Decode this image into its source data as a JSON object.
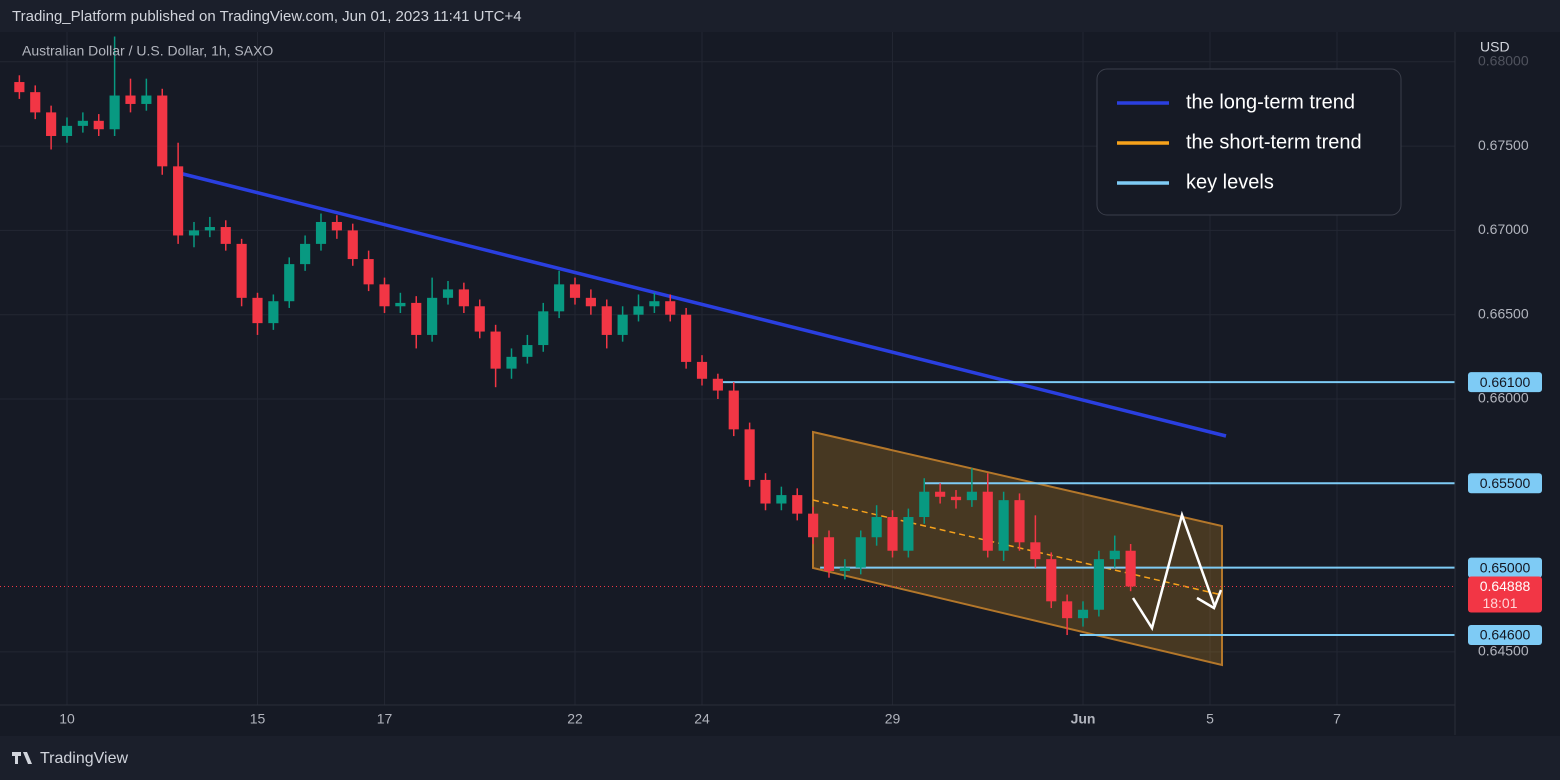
{
  "chart_data": {
    "type": "candlestick",
    "title": "Trading_Platform published on TradingView.com, Jun 01, 2023 11:41 UTC+4",
    "subtitle": "Australian Dollar / U.S. Dollar, 1h, SAXO",
    "y_label": "USD",
    "x": [
      -0.75,
      -0.5,
      -0.25,
      0,
      0.25,
      0.5,
      0.75,
      1,
      1.25,
      1.5,
      1.75,
      2,
      2.25,
      2.5,
      2.75,
      3,
      3.25,
      3.5,
      3.75,
      4,
      4.25,
      4.5,
      4.75,
      5,
      5.25,
      5.5,
      5.75,
      6,
      6.25,
      6.5,
      6.75,
      7,
      7.25,
      7.5,
      7.75,
      8,
      8.25,
      8.5,
      8.75,
      9,
      9.25,
      9.5,
      9.75,
      10,
      10.25,
      10.5,
      10.75,
      11,
      11.25,
      11.5,
      11.75,
      12,
      12.25,
      12.5,
      12.75,
      13,
      13.25,
      13.5,
      13.75,
      14,
      14.25,
      14.5,
      14.75,
      15,
      15.25,
      15.5,
      15.75,
      16,
      16.25,
      16.5,
      16.75
    ],
    "open": [
      0.6788,
      0.6782,
      0.677,
      0.6756,
      0.6762,
      0.6765,
      0.676,
      0.678,
      0.6775,
      0.678,
      0.6738,
      0.6697,
      0.67,
      0.6702,
      0.6692,
      0.666,
      0.6645,
      0.6658,
      0.668,
      0.6692,
      0.6705,
      0.67,
      0.6683,
      0.6668,
      0.6655,
      0.6657,
      0.6638,
      0.666,
      0.6665,
      0.6655,
      0.664,
      0.6618,
      0.6625,
      0.6632,
      0.6652,
      0.6668,
      0.666,
      0.6655,
      0.6638,
      0.665,
      0.6655,
      0.6658,
      0.665,
      0.6622,
      0.6612,
      0.6605,
      0.6582,
      0.6552,
      0.6538,
      0.6543,
      0.6532,
      0.6518,
      0.6498,
      0.65,
      0.6518,
      0.653,
      0.651,
      0.653,
      0.6545,
      0.6542,
      0.654,
      0.6545,
      0.651,
      0.654,
      0.6515,
      0.6505,
      0.648,
      0.647,
      0.6475,
      0.6505,
      0.651
    ],
    "high": [
      0.6792,
      0.6786,
      0.6774,
      0.6767,
      0.677,
      0.6769,
      0.6815,
      0.679,
      0.679,
      0.6784,
      0.6752,
      0.6705,
      0.6708,
      0.6706,
      0.6695,
      0.6663,
      0.6662,
      0.6684,
      0.6697,
      0.671,
      0.6709,
      0.6704,
      0.6688,
      0.6672,
      0.6663,
      0.6661,
      0.6672,
      0.667,
      0.6669,
      0.6659,
      0.6644,
      0.663,
      0.6638,
      0.6657,
      0.6676,
      0.6672,
      0.6665,
      0.6659,
      0.6655,
      0.6662,
      0.6663,
      0.6662,
      0.6654,
      0.6626,
      0.6615,
      0.661,
      0.6586,
      0.6556,
      0.6548,
      0.6547,
      0.6536,
      0.6522,
      0.6505,
      0.6522,
      0.6537,
      0.6534,
      0.6535,
      0.6553,
      0.655,
      0.6546,
      0.6559,
      0.6556,
      0.6545,
      0.6544,
      0.6531,
      0.6509,
      0.6484,
      0.648,
      0.651,
      0.6519,
      0.6514
    ],
    "low": [
      0.6778,
      0.6766,
      0.6748,
      0.6752,
      0.6758,
      0.6756,
      0.6756,
      0.677,
      0.6771,
      0.6733,
      0.6692,
      0.669,
      0.6696,
      0.6688,
      0.6655,
      0.6638,
      0.6641,
      0.6654,
      0.6676,
      0.6688,
      0.6695,
      0.6679,
      0.6664,
      0.6651,
      0.6651,
      0.663,
      0.6634,
      0.6656,
      0.6651,
      0.6636,
      0.6607,
      0.6612,
      0.6621,
      0.6628,
      0.6648,
      0.6656,
      0.665,
      0.663,
      0.6634,
      0.6646,
      0.6651,
      0.6646,
      0.6618,
      0.6608,
      0.66,
      0.6578,
      0.6548,
      0.6534,
      0.6534,
      0.6528,
      0.6514,
      0.6494,
      0.6493,
      0.6496,
      0.6513,
      0.6506,
      0.6506,
      0.6526,
      0.6538,
      0.6535,
      0.6536,
      0.6506,
      0.6504,
      0.651,
      0.65,
      0.6476,
      0.646,
      0.6465,
      0.6471,
      0.65,
      0.6486
    ],
    "close": [
      0.6782,
      0.677,
      0.6756,
      0.6762,
      0.6765,
      0.676,
      0.678,
      0.6775,
      0.678,
      0.6738,
      0.6697,
      0.67,
      0.6702,
      0.6692,
      0.666,
      0.6645,
      0.6658,
      0.668,
      0.6692,
      0.6705,
      0.67,
      0.6683,
      0.6668,
      0.6655,
      0.6657,
      0.6638,
      0.666,
      0.6665,
      0.6655,
      0.664,
      0.6618,
      0.6625,
      0.6632,
      0.6652,
      0.6668,
      0.666,
      0.6655,
      0.6638,
      0.665,
      0.6655,
      0.6658,
      0.665,
      0.6622,
      0.6612,
      0.6605,
      0.6582,
      0.6552,
      0.6538,
      0.6543,
      0.6532,
      0.6518,
      0.6498,
      0.65,
      0.6518,
      0.653,
      0.651,
      0.653,
      0.6545,
      0.6542,
      0.654,
      0.6545,
      0.651,
      0.654,
      0.6515,
      0.6505,
      0.648,
      0.647,
      0.6475,
      0.6505,
      0.651,
      0.64888
    ],
    "up_color": "#089981",
    "down_color": "#f23645",
    "xlim": [
      -1.055,
      21.858
    ],
    "xticks": [
      {
        "value": 0,
        "label": "10"
      },
      {
        "value": 3,
        "label": "15"
      },
      {
        "value": 5,
        "label": "17"
      },
      {
        "value": 8,
        "label": "22"
      },
      {
        "value": 10,
        "label": "24"
      },
      {
        "value": 13,
        "label": "29"
      },
      {
        "value": 16,
        "label": "Jun"
      },
      {
        "value": 18,
        "label": "5"
      },
      {
        "value": 20,
        "label": "7"
      }
    ],
    "ylim": [
      0.64185,
      0.68159
    ],
    "yticks": [
      {
        "value": 0.645,
        "label": "0.64500"
      },
      {
        "value": 0.66,
        "label": "0.66000"
      },
      {
        "value": 0.665,
        "label": "0.66500"
      },
      {
        "value": 0.67,
        "label": "0.67000"
      },
      {
        "value": 0.675,
        "label": "0.67500"
      },
      {
        "value": 0.68,
        "label": "0.68000"
      }
    ],
    "grid": true,
    "key_levels": [
      {
        "value": 0.661,
        "label": "0.66100",
        "from": 10.31
      },
      {
        "value": 0.655,
        "label": "0.65500",
        "from": 13.51
      },
      {
        "value": 0.65,
        "label": "0.65000",
        "from": 11.86
      },
      {
        "value": 0.646,
        "label": "0.64600",
        "from": 15.95
      }
    ],
    "key_level_color": "#7ecbf5",
    "last_price": 0.64888,
    "countdown": "18:01",
    "legend": [
      {
        "name": "the long-term trend",
        "color": "#2a3fe0"
      },
      {
        "name": "the short-term trend",
        "color": "#f7a21b"
      },
      {
        "name": "key levels",
        "color": "#7ecbf5"
      }
    ]
  },
  "footer": "TradingView"
}
